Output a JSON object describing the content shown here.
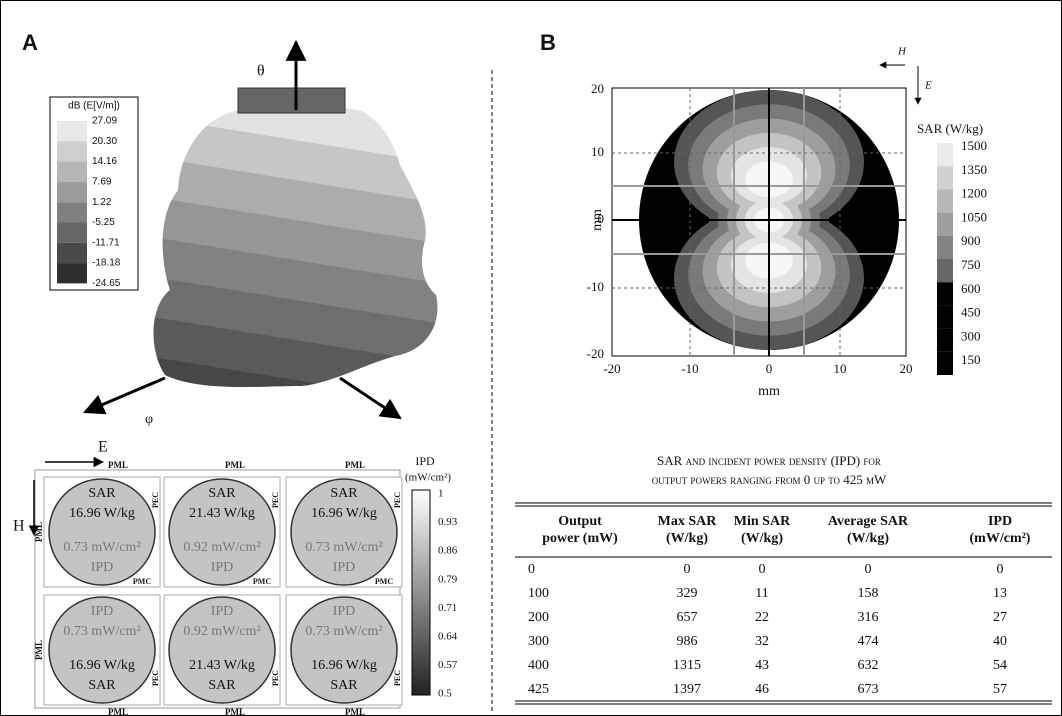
{
  "panel_a": {
    "label": "A",
    "field_plot": {
      "theta": "θ",
      "phi": "φ",
      "legend": {
        "title": "dB (E[V/m])",
        "ticks": [
          "27.09",
          "20.30",
          "14.16",
          "7.69",
          "1.22",
          "-5.25",
          "-11.71",
          "-18.18",
          "-24.65"
        ]
      }
    },
    "ipd_grid": {
      "e_label": "E",
      "h_label": "H",
      "pml": "PML",
      "pec": "PEC",
      "pmc": "PMC",
      "cells": [
        {
          "lines": [
            "SAR",
            "16.96 W/kg",
            "0.73 mW/cm²",
            "IPD"
          ]
        },
        {
          "lines": [
            "SAR",
            "21.43 W/kg",
            "0.92 mW/cm²",
            "IPD"
          ]
        },
        {
          "lines": [
            "SAR",
            "16.96 W/kg",
            "0.73 mW/cm²",
            "IPD"
          ]
        },
        {
          "lines": [
            "IPD",
            "0.73 mW/cm²",
            "16.96 W/kg",
            "SAR"
          ]
        },
        {
          "lines": [
            "IPD",
            "0.92 mW/cm²",
            "21.43 W/kg",
            "SAR"
          ]
        },
        {
          "lines": [
            "IPD",
            "0.73 mW/cm²",
            "16.96 W/kg",
            "SAR"
          ]
        }
      ],
      "colorbar": {
        "title": "IPD",
        "unit": "(mW/cm²)",
        "ticks": [
          "1",
          "0.93",
          "0.86",
          "0.79",
          "0.71",
          "0.64",
          "0.57",
          "0.5"
        ]
      }
    }
  },
  "panel_b": {
    "label": "B",
    "sar_map": {
      "x_label": "mm",
      "y_label": "mm",
      "h_label": "H",
      "e_label": "E",
      "x_ticks": [
        "-20",
        "-10",
        "0",
        "10",
        "20"
      ],
      "y_ticks": [
        "20",
        "10",
        "0",
        "-10",
        "-20"
      ],
      "colorbar": {
        "title": "SAR (W/kg)",
        "ticks": [
          "1500",
          "1350",
          "1200",
          "1050",
          "900",
          "750",
          "600",
          "450",
          "300",
          "150"
        ]
      }
    },
    "table": {
      "caption": [
        "SAR and incident power density (IPD) for",
        "output powers ranging from 0 up to 425 mW"
      ],
      "header": [
        [
          "Output",
          "power (mW)"
        ],
        [
          "Max SAR",
          "(W/kg)"
        ],
        [
          "Min SAR",
          "(W/kg)"
        ],
        [
          "Average SAR",
          "(W/kg)"
        ],
        [
          "IPD",
          "(mW/cm²)"
        ]
      ],
      "rows": [
        [
          0,
          0,
          0,
          0,
          0
        ],
        [
          100,
          329,
          11,
          158,
          13
        ],
        [
          200,
          657,
          22,
          316,
          27
        ],
        [
          300,
          986,
          32,
          474,
          40
        ],
        [
          400,
          1315,
          43,
          632,
          54
        ],
        [
          425,
          1397,
          46,
          673,
          57
        ]
      ]
    }
  }
}
